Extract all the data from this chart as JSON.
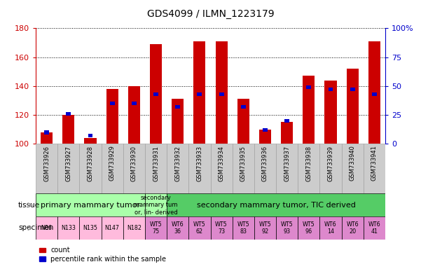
{
  "title": "GDS4099 / ILMN_1223179",
  "samples": [
    "GSM733926",
    "GSM733927",
    "GSM733928",
    "GSM733929",
    "GSM733930",
    "GSM733931",
    "GSM733932",
    "GSM733933",
    "GSM733934",
    "GSM733935",
    "GSM733936",
    "GSM733937",
    "GSM733938",
    "GSM733939",
    "GSM733940",
    "GSM733941"
  ],
  "count_values": [
    108,
    120,
    104,
    138,
    140,
    169,
    131,
    171,
    171,
    131,
    110,
    115,
    147,
    144,
    152,
    171
  ],
  "percentile_values": [
    10,
    26,
    7,
    35,
    35,
    43,
    32,
    43,
    43,
    32,
    12,
    20,
    49,
    47,
    47,
    43
  ],
  "ylim_left": [
    100,
    180
  ],
  "ylim_right": [
    0,
    100
  ],
  "yticks_left": [
    100,
    120,
    140,
    160,
    180
  ],
  "yticks_right": [
    0,
    25,
    50,
    75,
    100
  ],
  "bar_color_red": "#cc0000",
  "bar_color_blue": "#0000cc",
  "tissue_defs": [
    {
      "start": 0,
      "end": 5,
      "color": "#aaffaa",
      "label": "primary mammary tumor",
      "fontsize": 8
    },
    {
      "start": 5,
      "end": 6,
      "color": "#aaffaa",
      "label": "secondary\nmammary tum\nor, lin- derived",
      "fontsize": 6
    },
    {
      "start": 6,
      "end": 16,
      "color": "#55cc66",
      "label": "secondary mammary tumor, TIC derived",
      "fontsize": 8
    }
  ],
  "specimen_labels_short": [
    "N86",
    "N133",
    "N135",
    "N147",
    "N182",
    "WT5\n75",
    "WT6\n36",
    "WT5\n62",
    "WT5\n73",
    "WT5\n83",
    "WT5\n92",
    "WT5\n93",
    "WT5\n96",
    "WT6\n14",
    "WT6\n20",
    "WT6\n41"
  ],
  "specimen_colors": [
    "#ffbbdd",
    "#ffbbdd",
    "#ffbbdd",
    "#ffbbdd",
    "#ffbbdd",
    "#dd88cc",
    "#dd88cc",
    "#dd88cc",
    "#dd88cc",
    "#dd88cc",
    "#dd88cc",
    "#dd88cc",
    "#dd88cc",
    "#dd88cc",
    "#dd88cc",
    "#dd88cc"
  ],
  "xtick_bg": "#cccccc",
  "legend_items": [
    {
      "color": "#cc0000",
      "label": "count"
    },
    {
      "color": "#0000cc",
      "label": "percentile rank within the sample"
    }
  ]
}
